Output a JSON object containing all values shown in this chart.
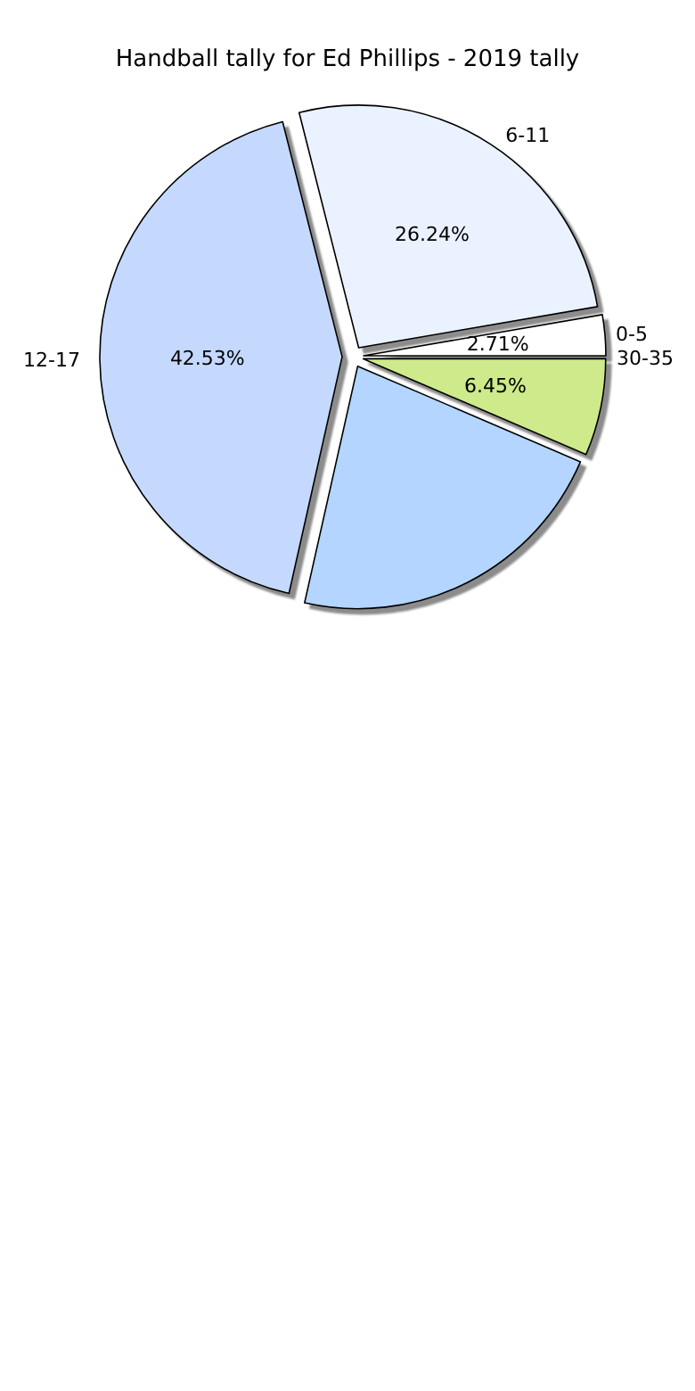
{
  "chart_data": {
    "type": "pie",
    "title": "Handball tally for Ed Phillips - 2019 tally",
    "categories": [
      "0-5",
      "6-11",
      "12-17",
      null,
      null,
      "30-35"
    ],
    "values": [
      2.71,
      26.24,
      42.53,
      22.07,
      6.45,
      0
    ],
    "colors": [
      "#ffffff",
      "#eaf2ff",
      "#c5d9ff",
      "#b3d5ff",
      "#ceea8a",
      "#ffffff"
    ],
    "value_labels": [
      "2.71%",
      "26.24%",
      "42.53%",
      null,
      "6.45%",
      null
    ],
    "legend": false
  }
}
